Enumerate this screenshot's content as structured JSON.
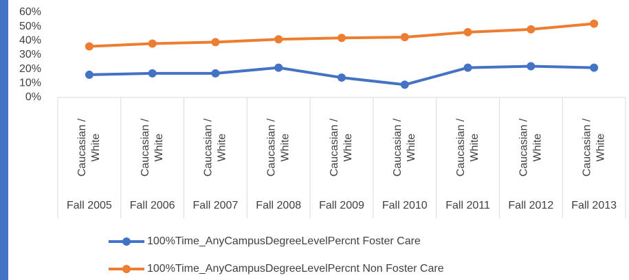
{
  "chart_data": {
    "type": "line",
    "categories": [
      "Fall 2005",
      "Fall 2006",
      "Fall 2007",
      "Fall 2008",
      "Fall 2009",
      "Fall 2010",
      "Fall 2011",
      "Fall 2012",
      "Fall 2013"
    ],
    "subcategories": [
      [
        "Caucasian /",
        "White"
      ],
      [
        "Caucasian /",
        "White"
      ],
      [
        "Caucasian /",
        "White"
      ],
      [
        "Caucasian /",
        "White"
      ],
      [
        "Caucasian /",
        "White"
      ],
      [
        "Caucasian /",
        "White"
      ],
      [
        "Caucasian /",
        "White"
      ],
      [
        "Caucasian /",
        "White"
      ],
      [
        "Caucasian /",
        "White"
      ]
    ],
    "series": [
      {
        "name": "100%Time_AnyCampusDegreeLevelPercnt Foster Care",
        "color": "#4472c4",
        "values": [
          16,
          17,
          17,
          21,
          14,
          9,
          21,
          22,
          21
        ]
      },
      {
        "name": "100%Time_AnyCampusDegreeLevelPercnt Non Foster Care",
        "color": "#ed7d31",
        "values": [
          36,
          38,
          39,
          41,
          42,
          42.5,
          46,
          48,
          52
        ]
      }
    ],
    "ylim": [
      0,
      60
    ],
    "yticks": [
      {
        "value": 0,
        "label": "0%"
      },
      {
        "value": 10,
        "label": "10%"
      },
      {
        "value": 20,
        "label": "20%"
      },
      {
        "value": 30,
        "label": "30%"
      },
      {
        "value": 40,
        "label": "40%"
      },
      {
        "value": 50,
        "label": "50%"
      },
      {
        "value": 60,
        "label": "60%"
      }
    ],
    "grid": false
  }
}
